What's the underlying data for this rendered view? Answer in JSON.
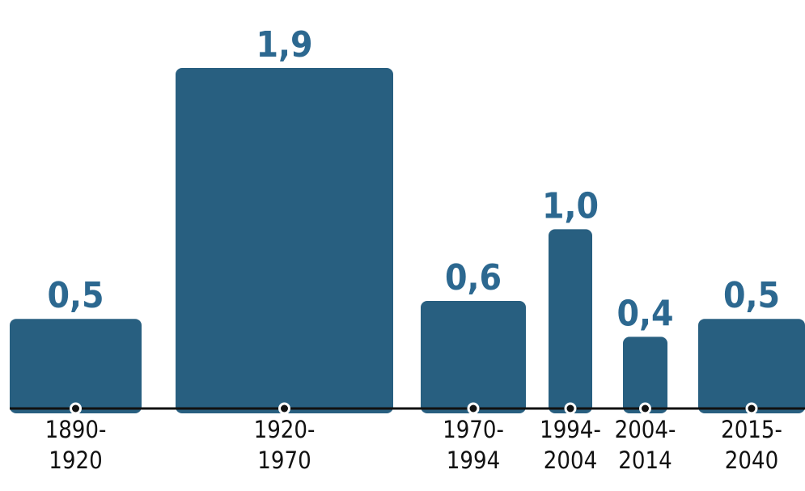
{
  "chart_data": {
    "type": "bar",
    "categories": [
      "1890-\n1920",
      "1920-\n1970",
      "1970-\n1994",
      "1994-\n2004",
      "2004-\n2014",
      "2015-\n2040"
    ],
    "values": [
      0.5,
      1.9,
      0.6,
      1.0,
      0.4,
      0.5
    ],
    "value_labels": [
      "0,5",
      "1,9",
      "0,6",
      "1,0",
      "0,4",
      "0,5"
    ],
    "color": "#285f80"
  }
}
